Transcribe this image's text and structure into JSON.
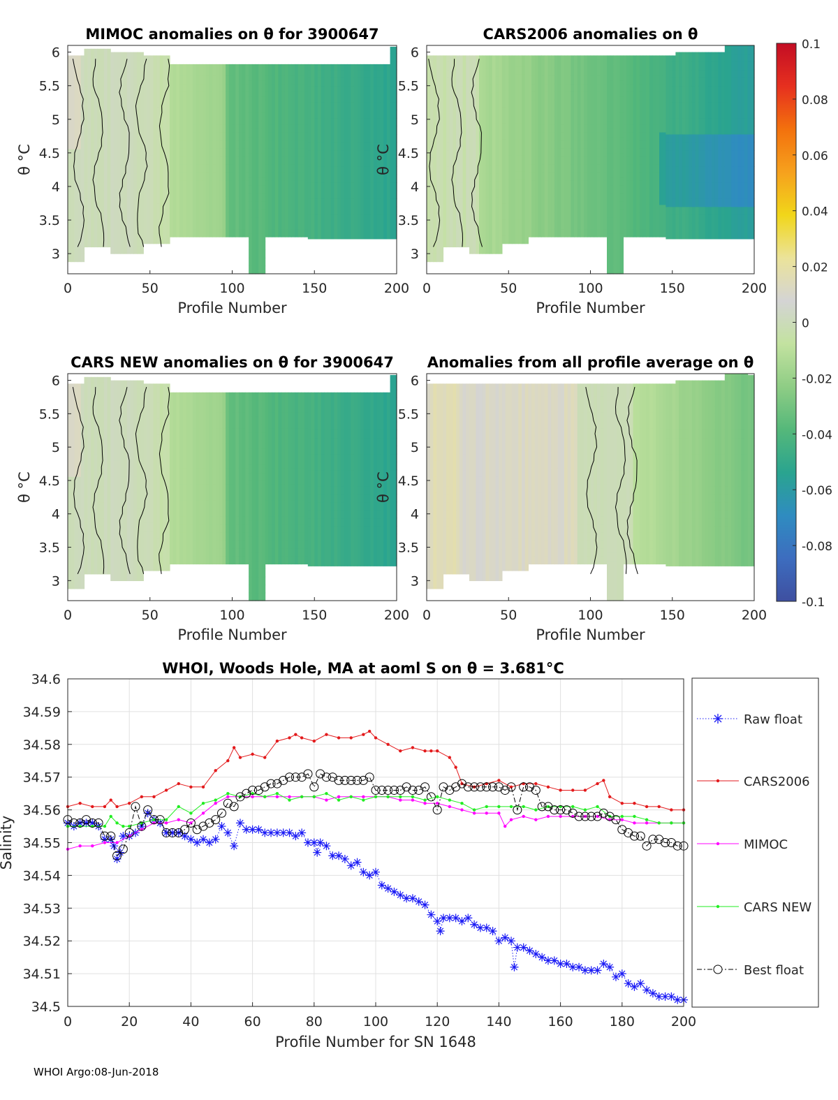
{
  "footer": "WHOI Argo:08-Jun-2018",
  "panels": [
    {
      "id": "mimoc",
      "title": "MIMOC anomalies on θ  for 3900647",
      "xlabel": "Profile Number",
      "ylabel": "θ °C",
      "xlim": [
        0,
        200
      ],
      "ylim": [
        2.7,
        6.1
      ],
      "xticks": [
        "0",
        "50",
        "100",
        "150",
        "200"
      ],
      "yticks": [
        "3",
        "3.5",
        "4",
        "4.5",
        "5",
        "5.5",
        "6"
      ],
      "pattern": "mimoc"
    },
    {
      "id": "cars2006",
      "title": "CARS2006 anomalies on θ",
      "xlabel": "Profile Number",
      "ylabel": "θ °C",
      "xlim": [
        0,
        200
      ],
      "ylim": [
        2.7,
        6.1
      ],
      "xticks": [
        "0",
        "50",
        "100",
        "150",
        "200"
      ],
      "yticks": [
        "3",
        "3.5",
        "4",
        "4.5",
        "5",
        "5.5",
        "6"
      ],
      "pattern": "cars2006"
    },
    {
      "id": "carsnew",
      "title": "CARS NEW anomalies on θ for 3900647",
      "xlabel": "Profile Number",
      "ylabel": "θ °C",
      "xlim": [
        0,
        200
      ],
      "ylim": [
        2.7,
        6.1
      ],
      "xticks": [
        "0",
        "50",
        "100",
        "150",
        "200"
      ],
      "yticks": [
        "3",
        "3.5",
        "4",
        "4.5",
        "5",
        "5.5",
        "6"
      ],
      "pattern": "carsnew"
    },
    {
      "id": "avg",
      "title": "Anomalies from all profile average on θ",
      "xlabel": "Profile Number",
      "ylabel": "θ °C",
      "xlim": [
        0,
        200
      ],
      "ylim": [
        2.7,
        6.1
      ],
      "xticks": [
        "0",
        "50",
        "100",
        "150",
        "200"
      ],
      "yticks": [
        "3",
        "3.5",
        "4",
        "4.5",
        "5",
        "5.5",
        "6"
      ],
      "pattern": "avg"
    }
  ],
  "colorbar": {
    "range": [
      -0.1,
      0.1
    ],
    "ticks": [
      "0.1",
      "0.08",
      "0.06",
      "0.04",
      "0.02",
      "0",
      "-0.02",
      "-0.04",
      "-0.06",
      "-0.08",
      "-0.1"
    ],
    "colors": [
      "#3e4fa0",
      "#3d6dbf",
      "#2f8cc0",
      "#2aa48f",
      "#55b87a",
      "#8fcd85",
      "#c3e2a0",
      "#d4d4d4",
      "#ebe39a",
      "#f1d61a",
      "#f6a11d",
      "#f3710d",
      "#e6301f",
      "#c30d24"
    ]
  },
  "chart_data": {
    "type": "line",
    "title": "WHOI, Woods Hole, MA at aoml S on θ = 3.681°C",
    "xlabel": "Profile Number for SN 1648",
    "ylabel": "Salinity",
    "xlim": [
      0,
      200
    ],
    "ylim": [
      34.5,
      34.6
    ],
    "xticks": [
      0,
      20,
      40,
      60,
      80,
      100,
      120,
      140,
      160,
      180,
      200
    ],
    "yticks": [
      34.5,
      34.51,
      34.52,
      34.53,
      34.54,
      34.55,
      34.56,
      34.57,
      34.58,
      34.59,
      34.6
    ],
    "grid": true,
    "legend_position": "outside-right",
    "series": [
      {
        "name": "Raw float",
        "color": "#1a1af5",
        "marker": "asterisk",
        "style": "dotted",
        "x": [
          0,
          2,
          4,
          6,
          8,
          10,
          12,
          14,
          15,
          16,
          17,
          18,
          20,
          22,
          24,
          26,
          28,
          30,
          32,
          34,
          36,
          38,
          40,
          42,
          44,
          46,
          48,
          50,
          52,
          54,
          56,
          58,
          60,
          62,
          64,
          66,
          68,
          70,
          72,
          74,
          76,
          78,
          80,
          81,
          82,
          84,
          86,
          88,
          90,
          92,
          94,
          96,
          98,
          100,
          102,
          104,
          106,
          108,
          110,
          112,
          114,
          116,
          118,
          120,
          121,
          122,
          124,
          126,
          128,
          130,
          132,
          134,
          136,
          138,
          140,
          142,
          144,
          145,
          146,
          148,
          150,
          152,
          154,
          156,
          158,
          160,
          162,
          164,
          166,
          168,
          170,
          172,
          174,
          176,
          178,
          180,
          182,
          184,
          186,
          188,
          190,
          192,
          194,
          196,
          198,
          200
        ],
        "y": [
          34.556,
          34.555,
          34.556,
          34.556,
          34.556,
          34.555,
          34.551,
          34.551,
          34.549,
          34.545,
          34.547,
          34.552,
          34.552,
          34.553,
          34.555,
          34.559,
          34.557,
          34.556,
          34.553,
          34.553,
          34.553,
          34.552,
          34.551,
          34.55,
          34.551,
          34.55,
          34.551,
          34.555,
          34.553,
          34.549,
          34.556,
          34.554,
          34.554,
          34.554,
          34.553,
          34.553,
          34.553,
          34.553,
          34.553,
          34.552,
          34.553,
          34.55,
          34.55,
          34.547,
          34.55,
          34.549,
          34.546,
          34.546,
          34.545,
          34.543,
          34.544,
          34.541,
          34.54,
          34.541,
          34.537,
          34.536,
          34.535,
          34.534,
          34.533,
          34.533,
          34.532,
          34.531,
          34.528,
          34.526,
          34.523,
          34.527,
          34.527,
          34.527,
          34.526,
          34.527,
          34.525,
          34.524,
          34.524,
          34.523,
          34.52,
          34.521,
          34.52,
          34.512,
          34.518,
          34.518,
          34.517,
          34.516,
          34.515,
          34.514,
          34.514,
          34.513,
          34.513,
          34.512,
          34.512,
          34.511,
          34.511,
          34.511,
          34.513,
          34.512,
          34.509,
          34.51,
          34.507,
          34.506,
          34.507,
          34.505,
          34.504,
          34.503,
          34.503,
          34.503,
          34.502,
          34.502
        ]
      },
      {
        "name": "CARS2006",
        "color": "#e31a1c",
        "marker": "dot",
        "style": "solid",
        "x": [
          0,
          4,
          8,
          12,
          14,
          16,
          20,
          24,
          28,
          32,
          36,
          40,
          44,
          48,
          52,
          54,
          56,
          60,
          64,
          68,
          72,
          74,
          76,
          80,
          84,
          88,
          92,
          96,
          98,
          100,
          104,
          108,
          112,
          116,
          118,
          120,
          124,
          126,
          128,
          132,
          136,
          140,
          144,
          148,
          152,
          156,
          160,
          164,
          168,
          172,
          174,
          176,
          180,
          184,
          188,
          192,
          196,
          200
        ],
        "y": [
          34.561,
          34.562,
          34.561,
          34.561,
          34.563,
          34.561,
          34.562,
          34.564,
          34.564,
          34.566,
          34.568,
          34.567,
          34.567,
          34.572,
          34.575,
          34.579,
          34.576,
          34.577,
          34.576,
          34.581,
          34.582,
          34.583,
          34.582,
          34.581,
          34.583,
          34.582,
          34.582,
          34.583,
          34.584,
          34.582,
          34.58,
          34.578,
          34.579,
          34.578,
          34.578,
          34.578,
          34.576,
          34.573,
          34.568,
          34.567,
          34.568,
          34.569,
          34.567,
          34.568,
          34.568,
          34.567,
          34.566,
          34.566,
          34.566,
          34.568,
          34.569,
          34.564,
          34.562,
          34.562,
          34.561,
          34.561,
          34.56,
          34.56
        ]
      },
      {
        "name": "MIMOC",
        "color": "#ff00ff",
        "marker": "dot",
        "style": "solid",
        "x": [
          0,
          4,
          8,
          12,
          16,
          20,
          24,
          28,
          32,
          36,
          40,
          44,
          48,
          52,
          56,
          60,
          64,
          68,
          72,
          76,
          80,
          84,
          88,
          92,
          96,
          100,
          104,
          108,
          112,
          116,
          120,
          124,
          128,
          132,
          136,
          140,
          142,
          144,
          148,
          152,
          156,
          160,
          164,
          168,
          172,
          176,
          180,
          184,
          188,
          192,
          196,
          200
        ],
        "y": [
          34.548,
          34.549,
          34.549,
          34.55,
          34.55,
          34.552,
          34.554,
          34.556,
          34.556,
          34.557,
          34.556,
          34.559,
          34.562,
          34.564,
          34.564,
          34.564,
          34.564,
          34.564,
          34.564,
          34.564,
          34.564,
          34.563,
          34.564,
          34.564,
          34.564,
          34.564,
          34.564,
          34.563,
          34.563,
          34.562,
          34.562,
          34.561,
          34.56,
          34.559,
          34.559,
          34.559,
          34.555,
          34.557,
          34.558,
          34.557,
          34.558,
          34.558,
          34.558,
          34.558,
          34.558,
          34.557,
          34.557,
          34.556,
          34.556,
          34.556,
          34.556,
          34.556
        ]
      },
      {
        "name": "CARS NEW",
        "color": "#22ee22",
        "marker": "dot",
        "style": "solid",
        "x": [
          0,
          4,
          8,
          12,
          14,
          16,
          18,
          20,
          24,
          28,
          32,
          36,
          40,
          44,
          48,
          52,
          56,
          60,
          64,
          68,
          72,
          76,
          80,
          84,
          88,
          92,
          96,
          100,
          104,
          108,
          112,
          116,
          120,
          124,
          128,
          132,
          136,
          140,
          144,
          148,
          152,
          156,
          160,
          164,
          168,
          172,
          176,
          180,
          184,
          188,
          192,
          196,
          200
        ],
        "y": [
          34.555,
          34.555,
          34.555,
          34.555,
          34.558,
          34.556,
          34.555,
          34.555,
          34.556,
          34.557,
          34.557,
          34.561,
          34.559,
          34.562,
          34.563,
          34.565,
          34.564,
          34.565,
          34.564,
          34.565,
          34.563,
          34.564,
          34.564,
          34.565,
          34.563,
          34.564,
          34.563,
          34.564,
          34.564,
          34.564,
          34.564,
          34.563,
          34.564,
          34.563,
          34.562,
          34.56,
          34.561,
          34.561,
          34.561,
          34.561,
          34.56,
          34.561,
          34.561,
          34.561,
          34.56,
          34.561,
          34.558,
          34.558,
          34.558,
          34.557,
          34.556,
          34.556,
          34.556
        ]
      },
      {
        "name": "Best float",
        "color": "#000000",
        "marker": "circle",
        "style": "dashdot",
        "x": [
          0,
          2,
          4,
          6,
          8,
          10,
          12,
          14,
          16,
          18,
          20,
          22,
          24,
          26,
          28,
          30,
          32,
          34,
          36,
          38,
          40,
          42,
          44,
          46,
          48,
          50,
          52,
          54,
          56,
          58,
          60,
          62,
          64,
          66,
          68,
          70,
          72,
          74,
          76,
          78,
          80,
          82,
          84,
          86,
          88,
          90,
          92,
          94,
          96,
          98,
          100,
          102,
          104,
          106,
          108,
          110,
          112,
          114,
          116,
          118,
          120,
          122,
          124,
          126,
          128,
          130,
          132,
          134,
          136,
          138,
          140,
          142,
          144,
          146,
          148,
          150,
          152,
          154,
          156,
          158,
          160,
          162,
          164,
          166,
          168,
          170,
          172,
          174,
          176,
          178,
          180,
          182,
          184,
          186,
          188,
          190,
          192,
          194,
          196,
          198,
          200
        ],
        "y": [
          34.557,
          34.556,
          34.556,
          34.557,
          34.556,
          34.556,
          34.552,
          34.552,
          34.546,
          34.548,
          34.553,
          34.561,
          34.555,
          34.56,
          34.557,
          34.557,
          34.553,
          34.553,
          34.553,
          34.554,
          34.556,
          34.554,
          34.555,
          34.556,
          34.557,
          34.559,
          34.562,
          34.561,
          34.564,
          34.565,
          34.566,
          34.566,
          34.567,
          34.568,
          34.568,
          34.569,
          34.57,
          34.57,
          34.57,
          34.571,
          34.567,
          34.571,
          34.57,
          34.57,
          34.569,
          34.569,
          34.569,
          34.569,
          34.569,
          34.57,
          34.566,
          34.566,
          34.566,
          34.566,
          34.566,
          34.567,
          34.566,
          34.566,
          34.567,
          34.564,
          34.56,
          34.567,
          34.566,
          34.567,
          34.568,
          34.567,
          34.567,
          34.567,
          34.567,
          34.567,
          34.567,
          34.566,
          34.567,
          34.56,
          34.567,
          34.567,
          34.566,
          34.561,
          34.561,
          34.56,
          34.56,
          34.56,
          34.559,
          34.558,
          34.558,
          34.558,
          34.558,
          34.559,
          34.558,
          34.557,
          34.554,
          34.553,
          34.552,
          34.552,
          34.549,
          34.551,
          34.551,
          34.55,
          34.55,
          34.549,
          34.549
        ]
      }
    ]
  }
}
